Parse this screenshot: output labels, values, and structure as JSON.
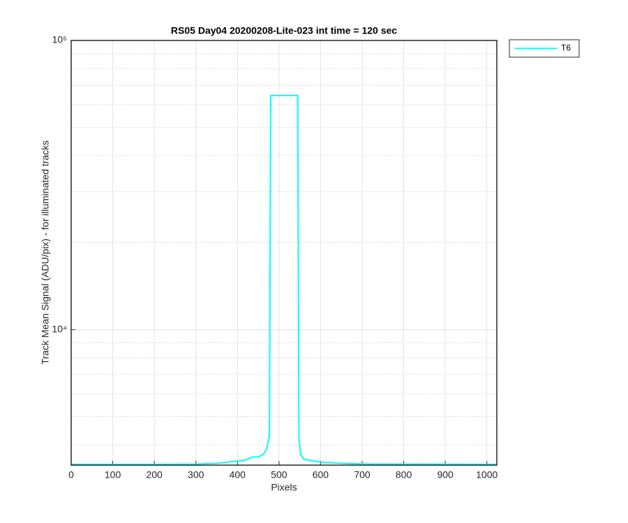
{
  "chart_data": {
    "type": "line",
    "title": "RS05 Day04 20200208-Lite-023 int time = 120 sec",
    "x_label": "Pixels",
    "y_label": "Track Mean Signal (ADU/pix) - for illuminated tracks",
    "x": [
      0,
      100,
      200,
      300,
      350,
      400,
      420,
      435,
      450,
      462,
      470,
      477,
      480,
      545,
      548,
      552,
      560,
      580,
      600,
      650,
      700,
      800,
      1024
    ],
    "series": [
      {
        "name": "T6",
        "color": "#00ffff",
        "values": [
          3420,
          3420,
          3420,
          3425,
          3450,
          3510,
          3540,
          3620,
          3630,
          3700,
          3850,
          4300,
          64500,
          64500,
          4200,
          3700,
          3560,
          3520,
          3480,
          3450,
          3430,
          3425,
          3420
        ]
      }
    ],
    "xlim": [
      0,
      1024
    ],
    "xticks": [
      0,
      100,
      200,
      300,
      400,
      500,
      600,
      700,
      800,
      900,
      1000
    ],
    "ylim": [
      3400,
      100000
    ],
    "y_scale": "log",
    "yticks": [
      {
        "value": 10000,
        "label": "10⁴"
      },
      {
        "value": 100000,
        "label": "10⁵"
      }
    ],
    "y_minor_grid": [
      4000,
      5000,
      6000,
      7000,
      8000,
      9000,
      20000,
      30000,
      40000,
      50000,
      60000,
      70000,
      80000,
      90000
    ],
    "grid": true,
    "legend_position": "outside-top-right"
  }
}
